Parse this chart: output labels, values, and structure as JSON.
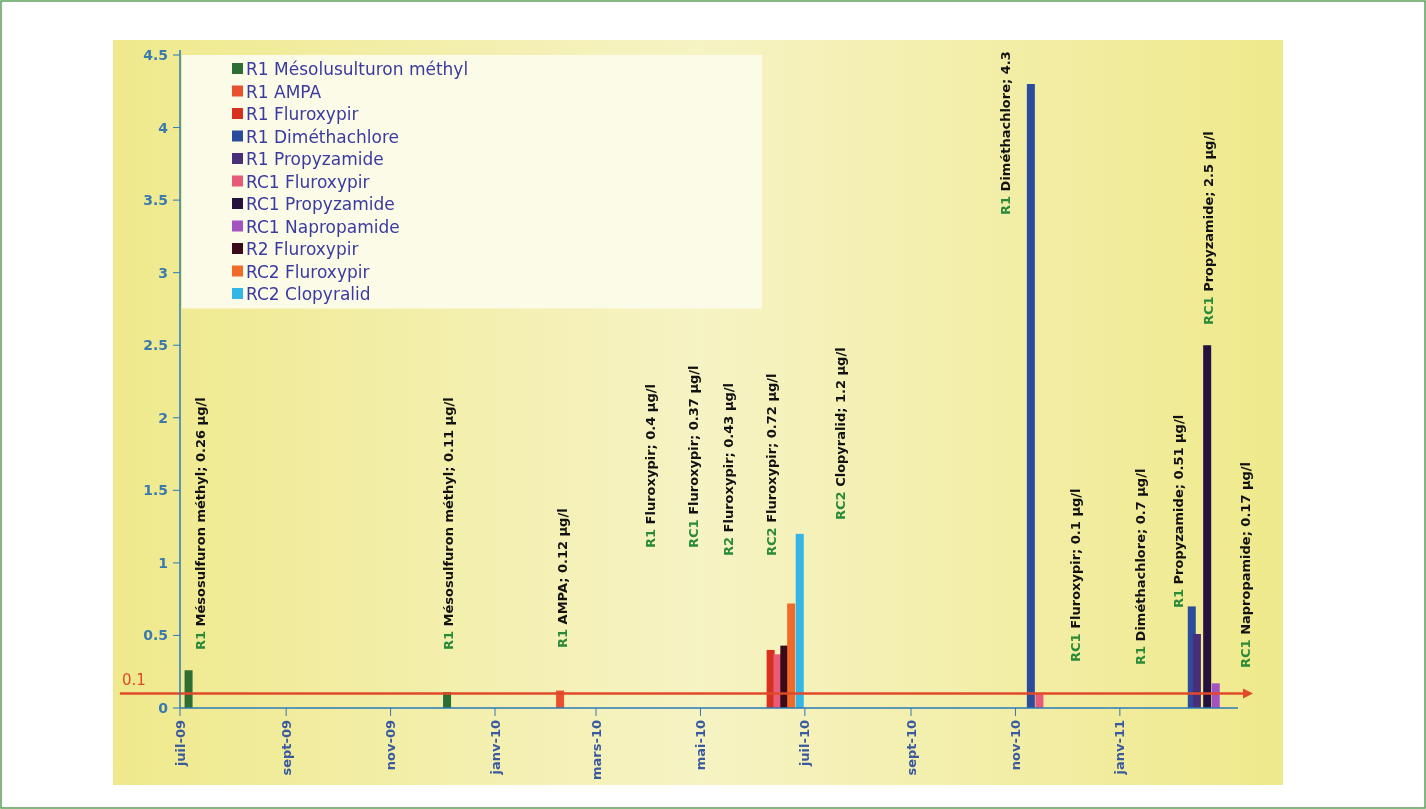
{
  "chart_data": {
    "type": "bar",
    "xlim": [
      "2009-07-01",
      "2011-03-11"
    ],
    "ylim": [
      0,
      4.5
    ],
    "yticks": [
      0,
      0.5,
      1,
      1.5,
      2,
      2.5,
      3,
      3.5,
      4,
      4.5
    ],
    "xticks": [
      {
        "value": "2009-07-01",
        "label": "juil-09"
      },
      {
        "value": "2009-09-01",
        "label": "sept-09"
      },
      {
        "value": "2009-11-01",
        "label": "nov-09"
      },
      {
        "value": "2010-01-01",
        "label": "janv-10"
      },
      {
        "value": "2010-03-01",
        "label": "mars-10"
      },
      {
        "value": "2010-05-01",
        "label": "mai-10"
      },
      {
        "value": "2010-07-01",
        "label": "juil-10"
      },
      {
        "value": "2010-09-01",
        "label": "sept-10"
      },
      {
        "value": "2010-11-01",
        "label": "nov-10"
      },
      {
        "value": "2011-01-01",
        "label": "janv-11"
      }
    ],
    "legend": "top left",
    "grid": false,
    "series": [
      {
        "name": "R1 Mésolusulturon méthyl",
        "color": "#2d6e34",
        "x": [
          "2009-07-06",
          "2009-12-04"
        ],
        "values": [
          0.26,
          0.11
        ]
      },
      {
        "name": "R1 AMPA",
        "color": "#e8502e",
        "x": [
          "2010-02-08"
        ],
        "values": [
          0.12
        ]
      },
      {
        "name": "R1 Fluroxypir",
        "color": "#d8301e",
        "x": [
          "2010-06-11"
        ],
        "values": [
          0.4
        ]
      },
      {
        "name": "R1 Diméthachlore",
        "color": "#2b4c9c",
        "x": [
          "2010-11-10",
          "2011-02-12"
        ],
        "values": [
          4.3,
          0.7
        ]
      },
      {
        "name": "R1 Propyzamide",
        "color": "#4a2e7a",
        "x": [
          "2011-02-15"
        ],
        "values": [
          0.51
        ]
      },
      {
        "name": "RC1 Fluroxypir",
        "color": "#e85a7a",
        "x": [
          "2010-06-15",
          "2010-11-15"
        ],
        "values": [
          0.37,
          0.1
        ]
      },
      {
        "name": "RC1 Propyzamide",
        "color": "#24123e",
        "x": [
          "2011-02-21"
        ],
        "values": [
          2.5
        ]
      },
      {
        "name": "RC1 Napropamide",
        "color": "#a352c0",
        "x": [
          "2011-02-26"
        ],
        "values": [
          0.17
        ]
      },
      {
        "name": "R2 Fluroxypir",
        "color": "#3a0a18",
        "x": [
          "2010-06-19"
        ],
        "values": [
          0.43
        ]
      },
      {
        "name": "RC2 Fluroxypir",
        "color": "#f06a2a",
        "x": [
          "2010-06-23"
        ],
        "values": [
          0.72
        ]
      },
      {
        "name": "RC2 Clopyralid",
        "color": "#33b5e5",
        "x": [
          "2010-06-28"
        ],
        "values": [
          1.2
        ]
      }
    ],
    "ref_lines": [
      {
        "axis": "y",
        "value": 0.1,
        "label": "0.1",
        "color": "#e04a2a"
      }
    ],
    "annotations": [
      "R1 Mésosulfuron méthyl; 0.26 µg/l",
      "R1 Mésosulfuron méthyl; 0.11 µg/l",
      "R1 AMPA; 0.12 µg/l",
      "R1 Fluroxypir; 0.4 µg/l",
      "RC1 Fluroxypir; 0.37 µg/l",
      "R2 Fluroxypir; 0.43 µg/l",
      "RC2 Fluroxypir; 0.72 µg/l",
      "RC2 Clopyralid; 1.2 µg/l",
      "R1 Diméthachlore; 4.3",
      "RC1 Fluroxypir; 0.1 µg/l",
      "R1 Diméthachlore; 0.7 µg/l",
      "R1 Propyzamide; 0.51 µg/l",
      "RC1 Propyzamide; 2.5 µg/l",
      "RC1 Napropamide; 0.17 µg/l"
    ]
  }
}
